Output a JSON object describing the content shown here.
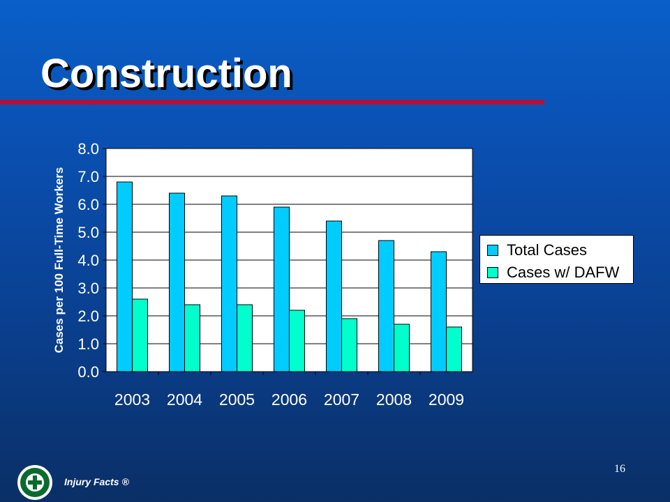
{
  "slide": {
    "title": "Construction",
    "page_number": "16",
    "footer_label": "Injury Facts ®",
    "logo_icon": "national-safety-council-seal-icon"
  },
  "colors": {
    "total_cases": "#00ccff",
    "cases_dafw": "#00ffcc",
    "title_rule": "#b0123a"
  },
  "chart_data": {
    "type": "bar",
    "title": "",
    "xlabel": "",
    "ylabel": "Cases per 100 Full-Time Workers",
    "categories": [
      "2003",
      "2004",
      "2005",
      "2006",
      "2007",
      "2008",
      "2009"
    ],
    "series": [
      {
        "name": "Total Cases",
        "values": [
          6.8,
          6.4,
          6.3,
          5.9,
          5.4,
          4.7,
          4.3
        ]
      },
      {
        "name": "Cases w/ DAFW",
        "values": [
          2.6,
          2.4,
          2.4,
          2.2,
          1.9,
          1.7,
          1.6
        ]
      }
    ],
    "ylim": [
      0,
      8
    ],
    "yticks": [
      "0.0",
      "1.0",
      "2.0",
      "3.0",
      "4.0",
      "5.0",
      "6.0",
      "7.0",
      "8.0"
    ],
    "grid": true,
    "legend_position": "right"
  }
}
